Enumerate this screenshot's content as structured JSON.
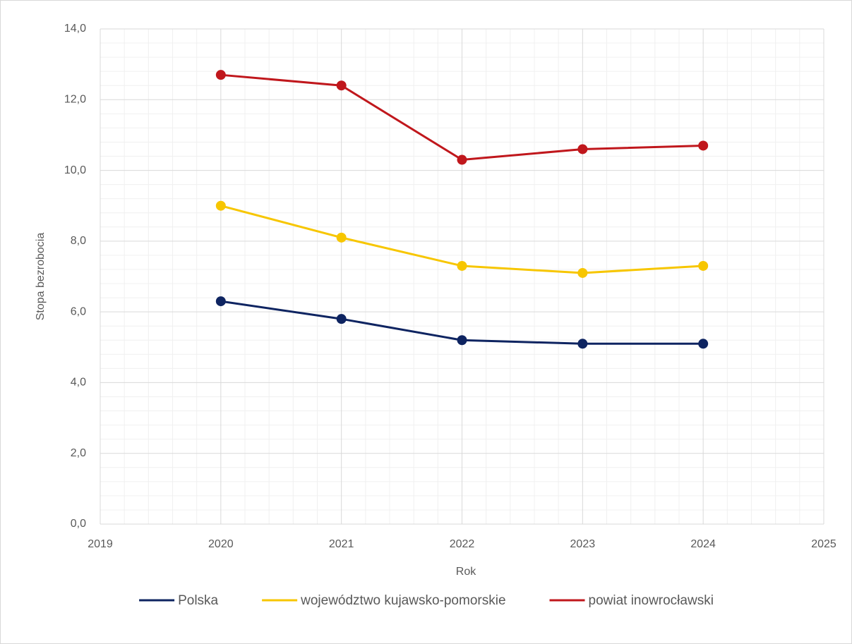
{
  "chart_data": {
    "type": "line",
    "x_label": "Rok",
    "y_label": "Stopa bezrobocia",
    "x": [
      2020,
      2021,
      2022,
      2023,
      2024
    ],
    "series": [
      {
        "name": "Polska",
        "color": "#0e2461",
        "values": [
          6.3,
          5.8,
          5.2,
          5.1,
          5.1
        ]
      },
      {
        "name": "województwo kujawsko-pomorskie",
        "color": "#f7c600",
        "values": [
          9.0,
          8.1,
          7.3,
          7.1,
          7.3
        ]
      },
      {
        "name": "powiat inowrocławski",
        "color": "#c0171c",
        "values": [
          12.7,
          12.4,
          10.3,
          10.6,
          10.7
        ]
      }
    ],
    "xlim": [
      2019,
      2025
    ],
    "xticks": [
      2019,
      2020,
      2021,
      2022,
      2023,
      2024,
      2025
    ],
    "ylim": [
      0,
      14
    ],
    "yticks": [
      {
        "value": 0,
        "label": "0,0"
      },
      {
        "value": 2,
        "label": "2,0"
      },
      {
        "value": 4,
        "label": "4,0"
      },
      {
        "value": 6,
        "label": "6,0"
      },
      {
        "value": 8,
        "label": "8,0"
      },
      {
        "value": 10,
        "label": "10,0"
      },
      {
        "value": 12,
        "label": "12,0"
      },
      {
        "value": 14,
        "label": "14,0"
      }
    ],
    "grid": true,
    "legend": "bottom"
  }
}
